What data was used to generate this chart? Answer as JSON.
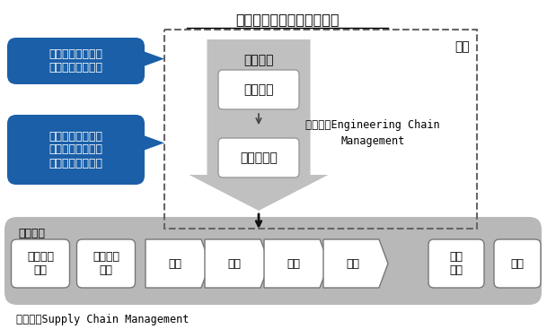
{
  "title": "製造業の基幹業務プロセス",
  "bg_color": "#ffffff",
  "blue_bubble1_text": "製品のバリューを\n設計するプロセス",
  "blue_bubble2_text": "設計された製品の\nバリューを利益に\n変換するプロセス",
  "ecm_label": "ＥＣＭ軸",
  "ecm_box1": "製品企画",
  "ecm_box2": "開発・設計",
  "jisha_label": "自社",
  "ecm_full_line1": "ＥＣＭ：Engineering Chain",
  "ecm_full_line2": "Management",
  "scm_label": "ＳＣＭ軸",
  "scm_full": "ＳＣＭ：Supply Chain Management",
  "scm_boxes_mid": [
    "調達",
    "生産",
    "物流",
    "販売"
  ],
  "blue_color": "#1a5fa8",
  "dashed_border": "#666666",
  "ecm_gray": "#c0c0c0",
  "scm_gray": "#b8b8b8",
  "white": "#ffffff"
}
